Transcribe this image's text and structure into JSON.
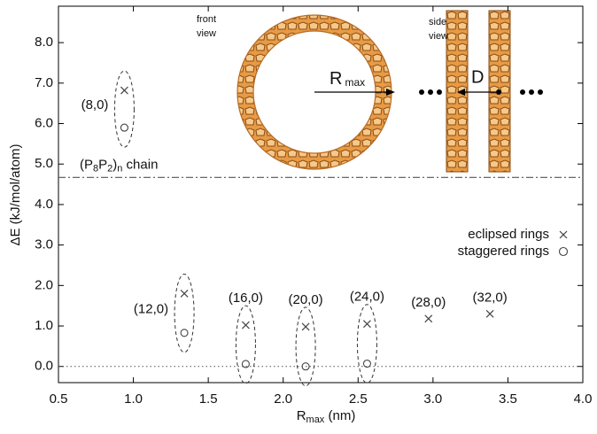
{
  "chart_data": {
    "type": "scatter",
    "xlabel_parts": [
      "R",
      "max",
      " (nm)"
    ],
    "ylabel": "ΔE (kJ/mol/atom)",
    "xlim": [
      0.5,
      4.0
    ],
    "ylim": [
      -0.4,
      8.9
    ],
    "xticks": [
      0.5,
      {
        "value": 1,
        "label": "1.0"
      },
      1.5,
      {
        "value": 2,
        "label": "2.0"
      },
      2.5,
      {
        "value": 3,
        "label": "3.0"
      },
      3.5,
      {
        "value": 4,
        "label": "4.0"
      }
    ],
    "yticks": [
      {
        "value": 0,
        "label": "0.0"
      },
      {
        "value": 1,
        "label": "1.0"
      },
      {
        "value": 2,
        "label": "2.0"
      },
      {
        "value": 3,
        "label": "3.0"
      },
      {
        "value": 4,
        "label": "4.0"
      },
      {
        "value": 5,
        "label": "5.0"
      },
      {
        "value": 6,
        "label": "6.0"
      },
      {
        "value": 7,
        "label": "7.0"
      },
      {
        "value": 8,
        "label": "8.0"
      }
    ],
    "legend": "right",
    "series": [
      {
        "name": "eclipsed rings",
        "marker": "x",
        "color": "#444444",
        "x": [
          0.94,
          1.34,
          1.75,
          2.15,
          2.56,
          2.97,
          3.38
        ],
        "values": [
          6.82,
          1.8,
          1.02,
          0.98,
          1.05,
          1.18,
          1.3
        ],
        "labels": [
          "(8,0)",
          "(12,0)",
          "(16,0)",
          "(20,0)",
          "(24,0)",
          "(28,0)",
          "(32,0)"
        ]
      },
      {
        "name": "staggered rings",
        "marker": "o",
        "color": "#444444",
        "x": [
          0.94,
          1.34,
          1.75,
          2.15,
          2.56
        ],
        "values": [
          5.9,
          0.83,
          0.06,
          0.0,
          0.07
        ]
      }
    ],
    "chain_line": {
      "value": 4.67,
      "label_parts": [
        "(P",
        "8",
        "P",
        "2",
        ")",
        "n",
        " chain"
      ]
    },
    "zero_line": 0,
    "front_view": [
      "front",
      "view"
    ],
    "side_view": [
      "side",
      "view"
    ],
    "rmax_label": [
      "R",
      "max"
    ],
    "d_label": "D"
  }
}
